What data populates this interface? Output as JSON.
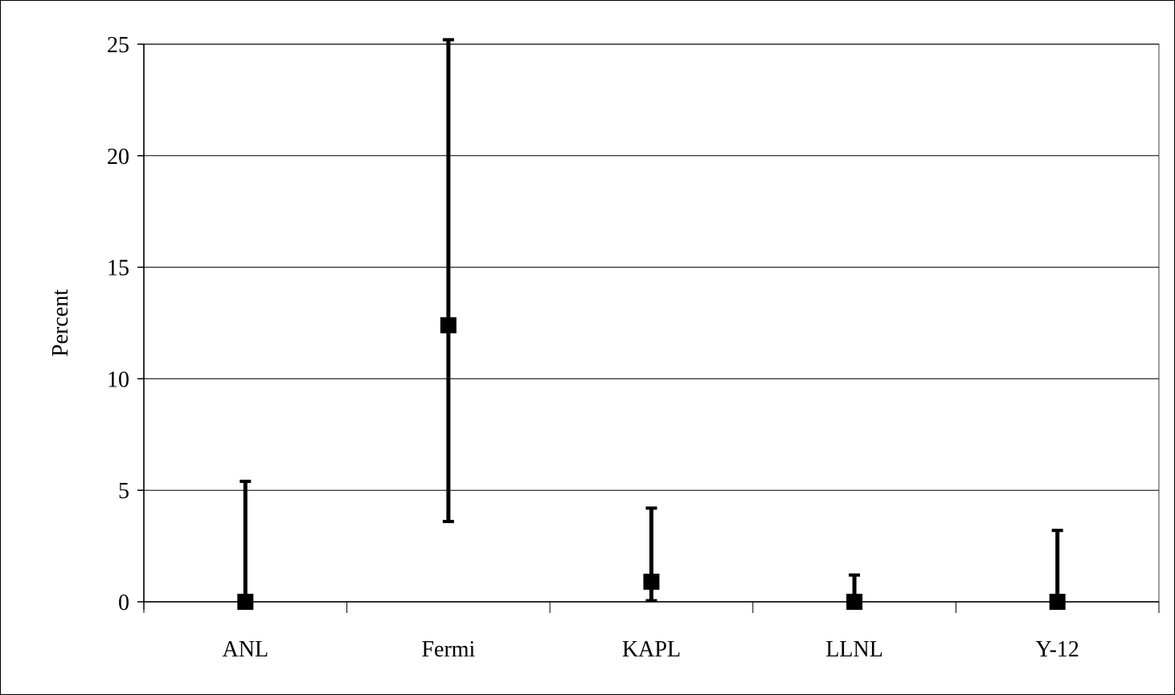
{
  "chart_data": {
    "type": "scatter",
    "title": "",
    "xlabel": "",
    "ylabel": "Percent",
    "categories": [
      "ANL",
      "Fermi",
      "KAPL",
      "LLNL",
      "Y-12"
    ],
    "series": [
      {
        "values": [
          0,
          12.4,
          0.9,
          0,
          0
        ],
        "error_low": [
          0,
          3.6,
          0.05,
          0,
          0
        ],
        "error_high": [
          5.4,
          25.2,
          4.2,
          1.2,
          3.2
        ]
      }
    ],
    "ylim": [
      0,
      25
    ],
    "yticks": [
      "0",
      "5",
      "10",
      "15",
      "20",
      "25"
    ],
    "grid": true,
    "legend": "none",
    "colors": {
      "marker": "#000000",
      "gridline": "#000000",
      "axis": "#000000",
      "plot_border": "#808080"
    }
  }
}
